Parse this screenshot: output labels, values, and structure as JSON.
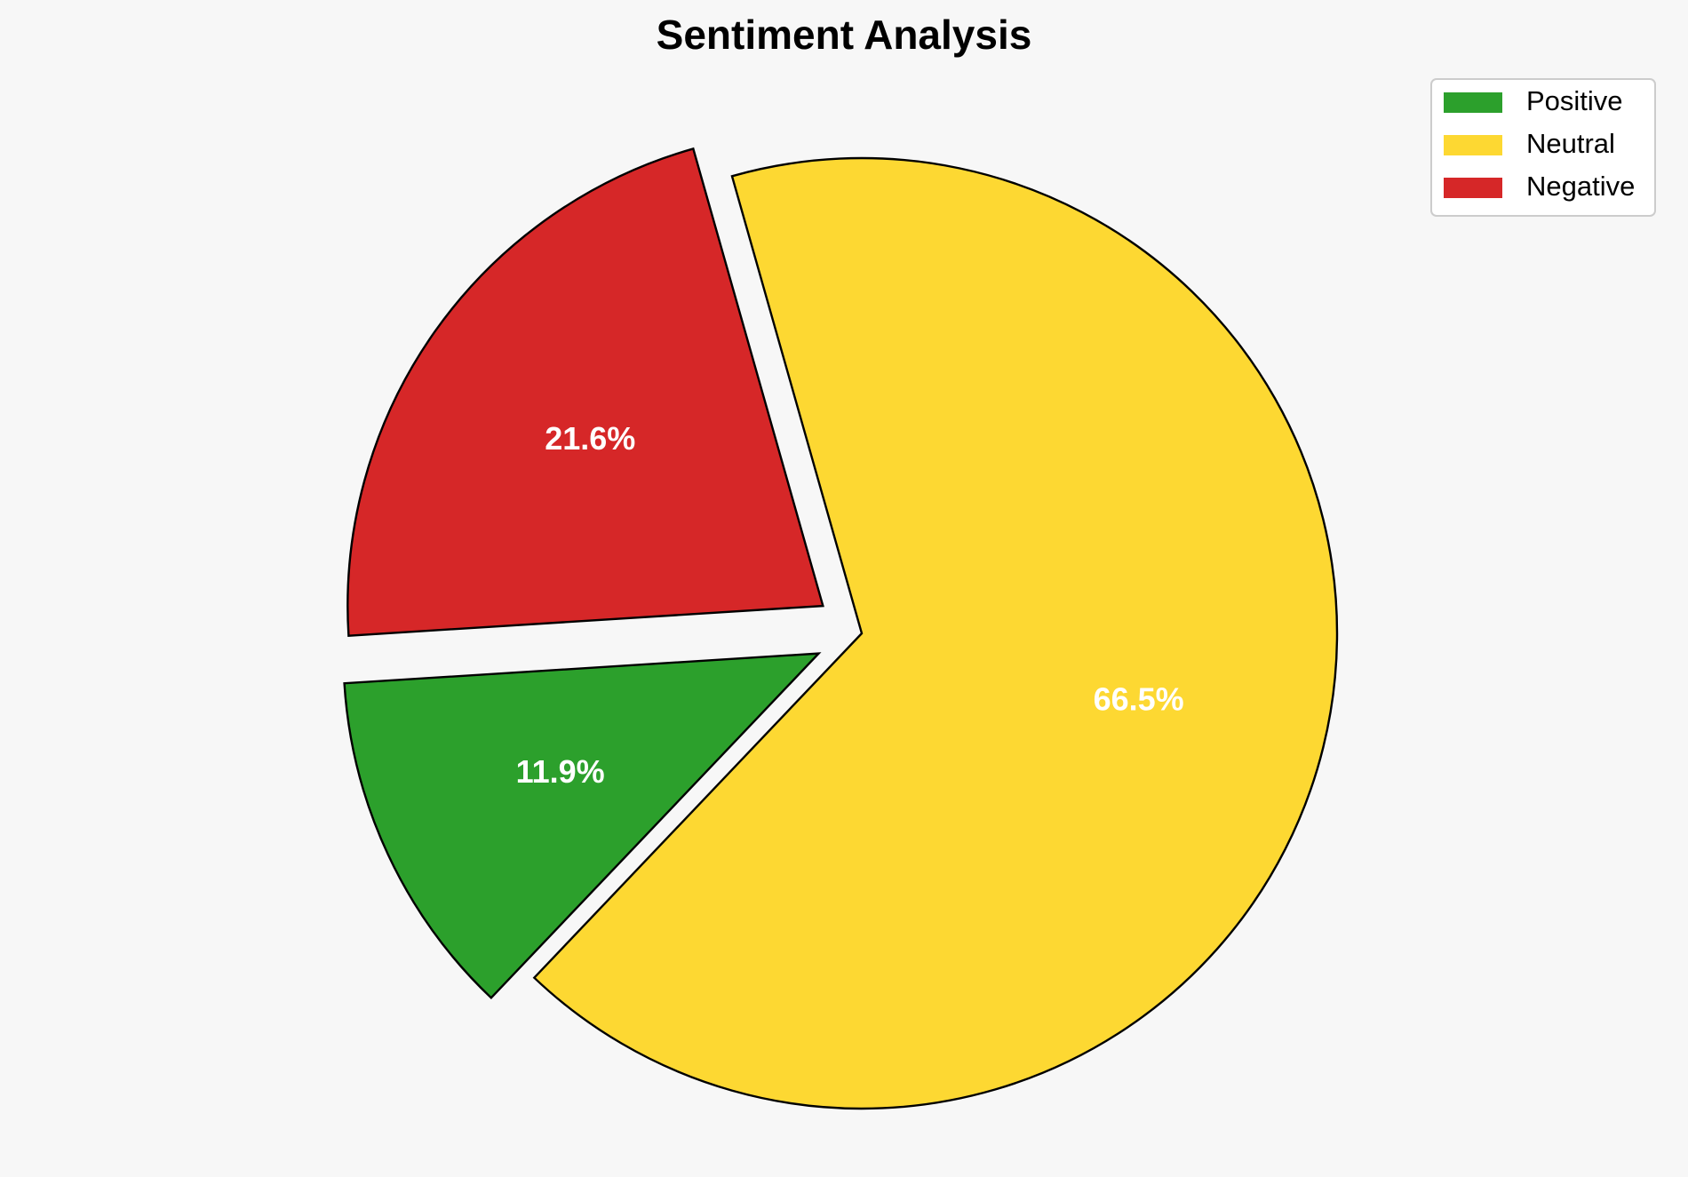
{
  "chart_data": {
    "type": "pie",
    "title": "Sentiment Analysis",
    "start_angle_deg": 183.6,
    "direction": "counterclockwise",
    "explode": [
      0.1,
      0.0,
      0.1
    ],
    "slices": [
      {
        "label": "Positive",
        "value": 11.9,
        "display": "11.9%",
        "color": "#2ca02c"
      },
      {
        "label": "Neutral",
        "value": 66.5,
        "display": "66.5%",
        "color": "#fdd832"
      },
      {
        "label": "Negative",
        "value": 21.6,
        "display": "21.6%",
        "color": "#d62728"
      }
    ],
    "legend": {
      "position": "top-right",
      "entries": [
        "Positive",
        "Neutral",
        "Negative"
      ]
    }
  }
}
